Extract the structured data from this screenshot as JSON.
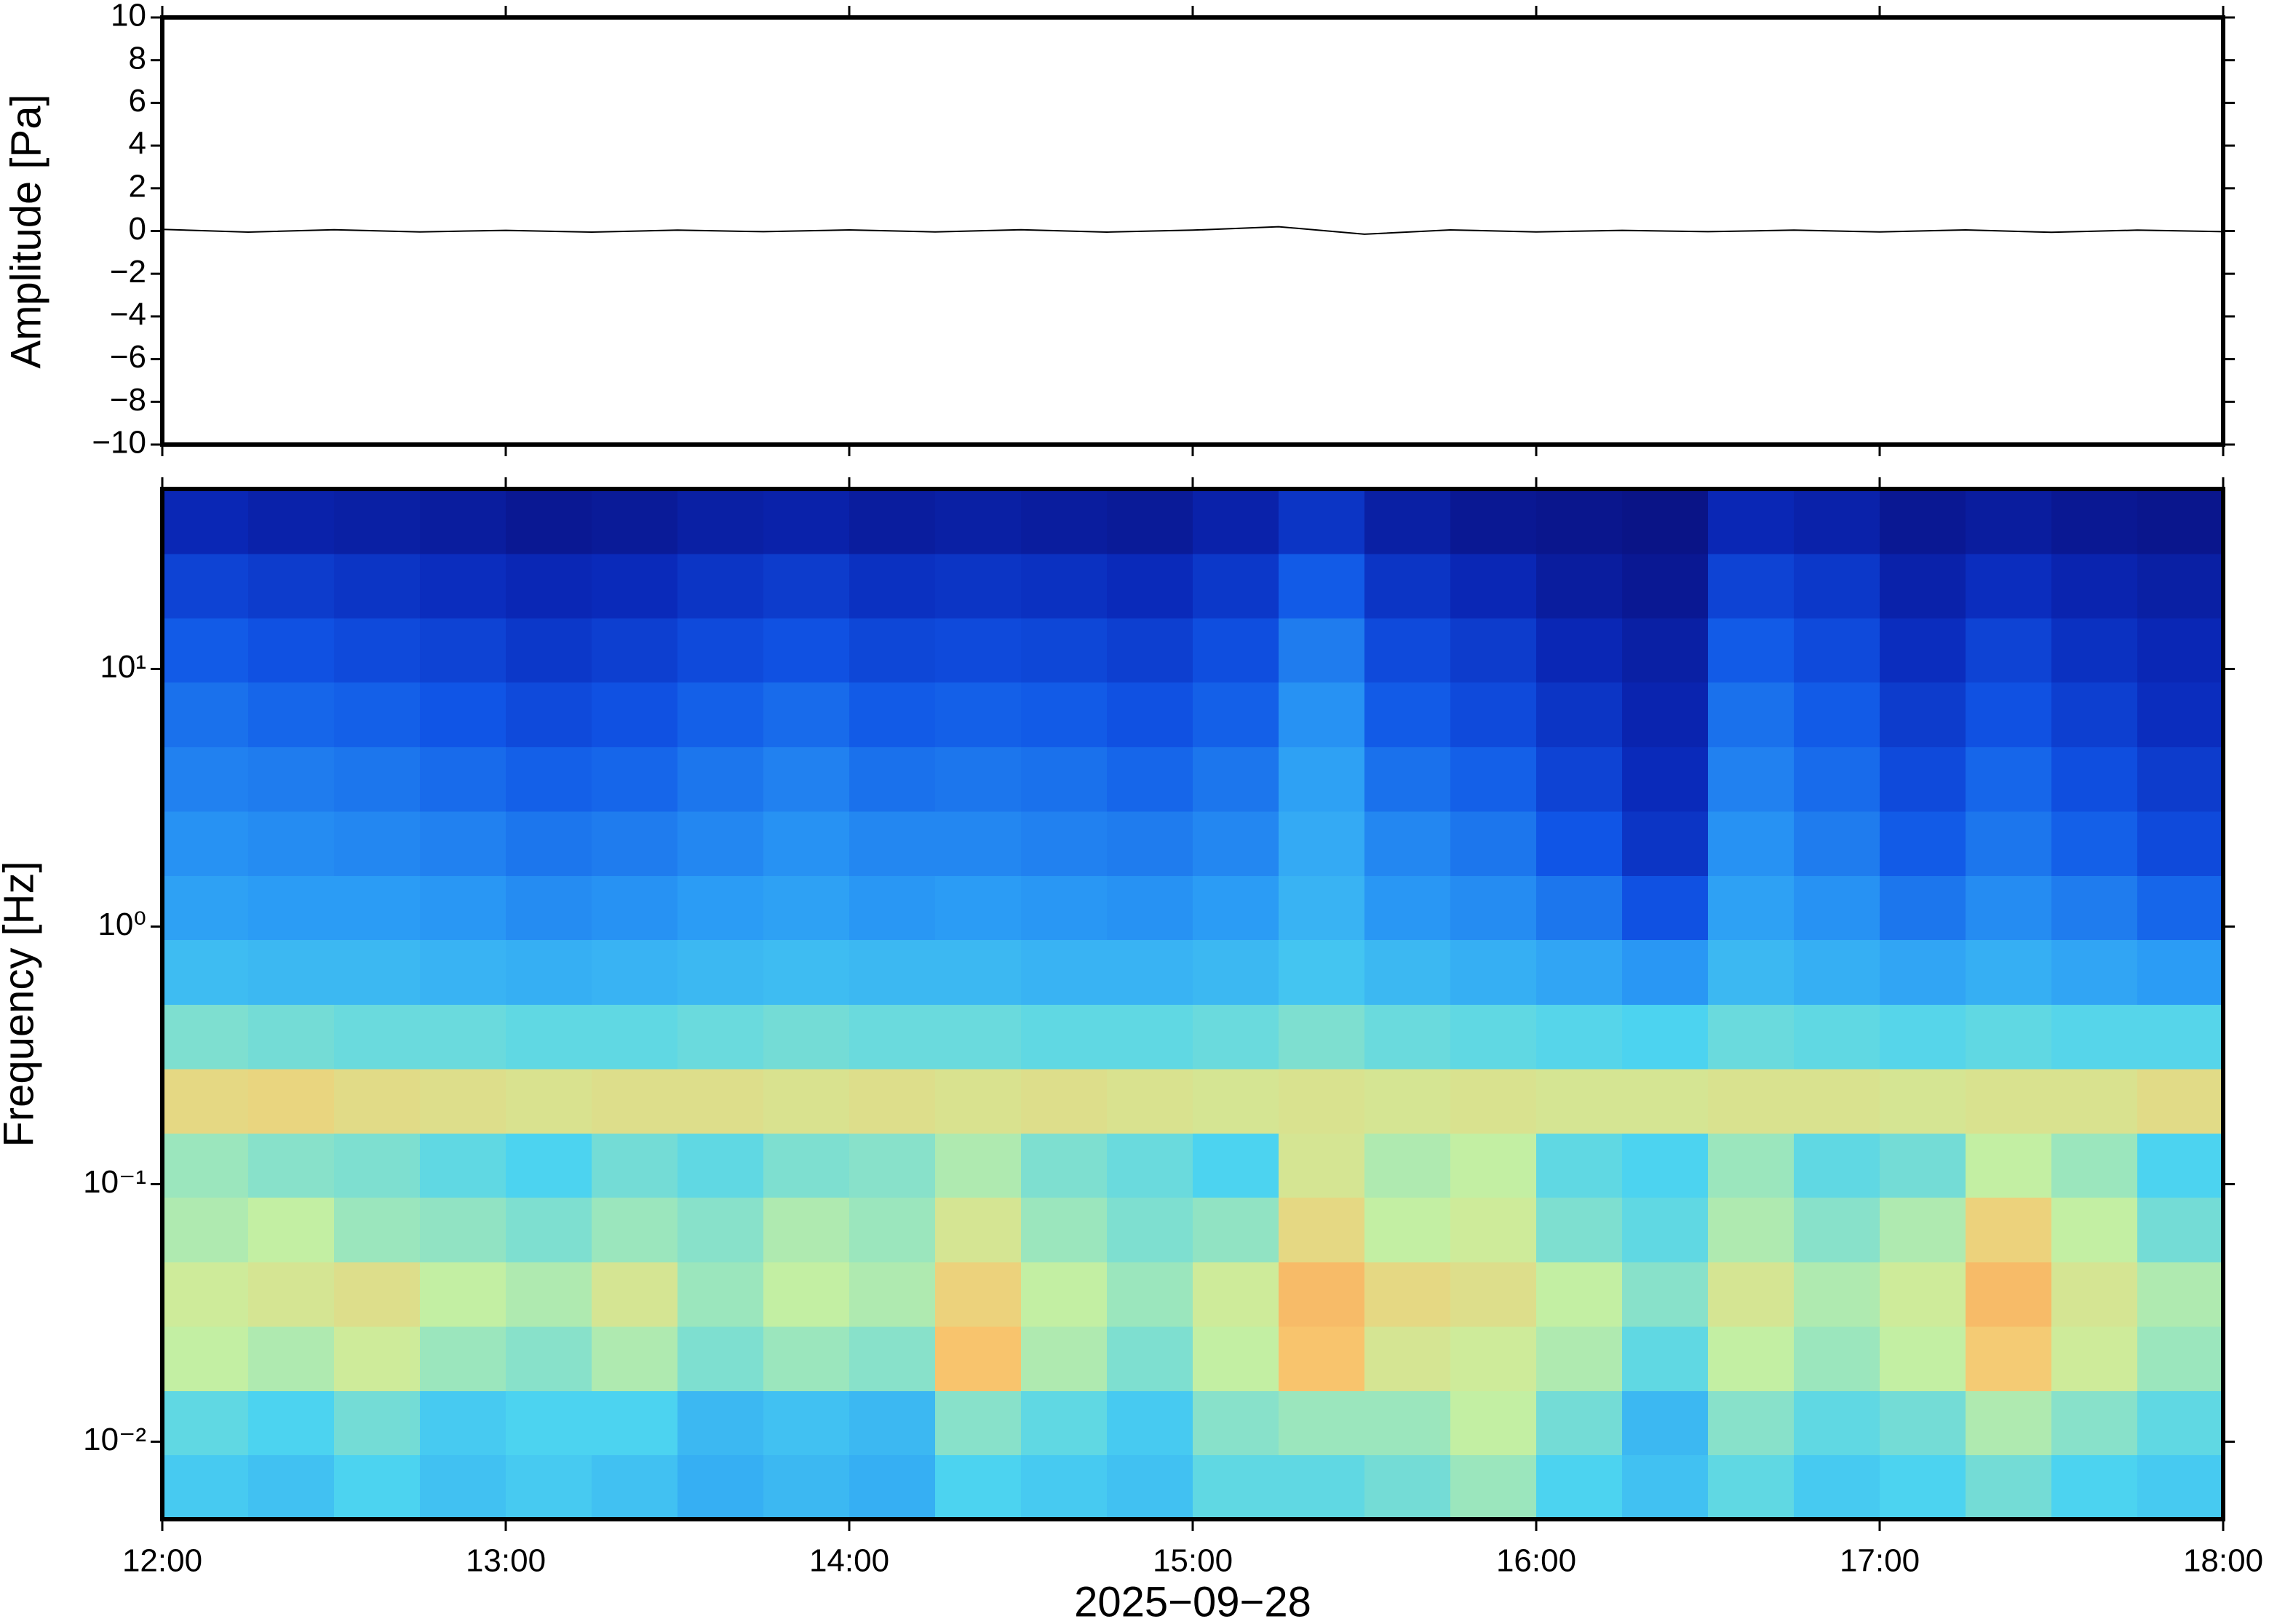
{
  "chart_data": [
    {
      "type": "line",
      "y_label": "Amplitude [Pa]",
      "color": "#000000",
      "xlim": [
        "12:00",
        "18:00"
      ],
      "x": [
        "12:00",
        "12:15",
        "12:30",
        "12:45",
        "13:00",
        "13:15",
        "13:30",
        "13:45",
        "14:00",
        "14:15",
        "14:30",
        "14:45",
        "15:00",
        "15:15",
        "15:30",
        "15:45",
        "16:00",
        "16:15",
        "16:30",
        "16:45",
        "17:00",
        "17:15",
        "17:30",
        "17:45",
        "18:00"
      ],
      "values": [
        0.08,
        -0.05,
        0.06,
        -0.04,
        0.03,
        -0.05,
        0.04,
        -0.03,
        0.05,
        -0.04,
        0.06,
        -0.05,
        0.04,
        0.2,
        -0.15,
        0.05,
        -0.04,
        0.03,
        -0.03,
        0.04,
        -0.04,
        0.05,
        -0.06,
        0.04,
        -0.03
      ],
      "ylim": [
        -10,
        10
      ],
      "yticks": [
        {
          "value": -10,
          "label": "−10"
        },
        {
          "value": -8,
          "label": "−8"
        },
        {
          "value": -6,
          "label": "−6"
        },
        {
          "value": -4,
          "label": "−4"
        },
        {
          "value": -2,
          "label": "−2"
        },
        0,
        2,
        4,
        6,
        8,
        10
      ]
    },
    {
      "type": "spectrogram",
      "y_label": "Frequency [Hz]",
      "x_label": "2025−09−28",
      "y_log": true,
      "xlim": [
        "12:00",
        "18:00"
      ],
      "xticks": [
        "12:00",
        "13:00",
        "14:00",
        "15:00",
        "16:00",
        "17:00",
        "18:00"
      ],
      "ylim": [
        0.005,
        50
      ],
      "yticks": [
        {
          "value": 0.01,
          "label": "10⁻²"
        },
        {
          "value": 0.1,
          "label": "10⁻¹"
        },
        {
          "value": 1,
          "label": "10⁰"
        },
        {
          "value": 10,
          "label": "10¹"
        }
      ],
      "x_bins": [
        "12:00",
        "12:15",
        "12:30",
        "12:45",
        "13:00",
        "13:15",
        "13:30",
        "13:45",
        "14:00",
        "14:15",
        "14:30",
        "14:45",
        "15:00",
        "15:15",
        "15:30",
        "15:45",
        "16:00",
        "16:15",
        "16:30",
        "16:45",
        "17:00",
        "17:15",
        "17:30",
        "17:45",
        "18:00"
      ],
      "y_bins": [
        0.005,
        0.0089,
        0.0158,
        0.0281,
        0.05,
        0.089,
        0.158,
        0.281,
        0.5,
        0.89,
        1.58,
        2.81,
        5,
        8.9,
        15.8,
        28.1,
        50
      ],
      "zlim": [
        0,
        100
      ],
      "colormap": [
        "#0a0a70",
        "#0a28b8",
        "#1055e6",
        "#2a9af5",
        "#4cd3f0",
        "#c8f0a0",
        "#f8c870",
        "#f59050",
        "#e05030"
      ],
      "values": [
        [
          48,
          46,
          50,
          46,
          48,
          46,
          42,
          44,
          42,
          50,
          48,
          46,
          52,
          52,
          54,
          58,
          50,
          46,
          52,
          48,
          50,
          54,
          50,
          48
        ],
        [
          52,
          50,
          54,
          48,
          50,
          50,
          44,
          46,
          44,
          56,
          52,
          48,
          56,
          58,
          58,
          62,
          54,
          44,
          56,
          52,
          54,
          60,
          56,
          52
        ],
        [
          62,
          60,
          64,
          58,
          56,
          60,
          55,
          58,
          56,
          76,
          60,
          55,
          62,
          76,
          66,
          64,
          60,
          52,
          62,
          58,
          62,
          74,
          64,
          58
        ],
        [
          64,
          66,
          68,
          62,
          60,
          66,
          58,
          62,
          60,
          72,
          62,
          58,
          64,
          78,
          70,
          68,
          62,
          56,
          66,
          60,
          64,
          78,
          66,
          60
        ],
        [
          60,
          62,
          58,
          57,
          55,
          58,
          56,
          60,
          58,
          66,
          58,
          55,
          57,
          70,
          62,
          64,
          55,
          52,
          60,
          56,
          60,
          72,
          62,
          54
        ],
        [
          58,
          56,
          55,
          52,
          50,
          54,
          52,
          55,
          56,
          60,
          55,
          53,
          50,
          66,
          60,
          62,
          52,
          50,
          58,
          52,
          54,
          62,
          58,
          50
        ],
        [
          70,
          71,
          69,
          68,
          67,
          68,
          68,
          67,
          68,
          67,
          68,
          67,
          66,
          67,
          66,
          67,
          66,
          66,
          67,
          67,
          66,
          67,
          67,
          69
        ],
        [
          55,
          54,
          53,
          53,
          52,
          52,
          53,
          54,
          53,
          53,
          52,
          52,
          53,
          55,
          53,
          52,
          51,
          50,
          53,
          52,
          51,
          52,
          51,
          51
        ],
        [
          45,
          44,
          44,
          43,
          42,
          43,
          44,
          45,
          44,
          44,
          43,
          43,
          44,
          47,
          44,
          42,
          40,
          37,
          44,
          42,
          40,
          42,
          40,
          38
        ],
        [
          39,
          38,
          38,
          37,
          35,
          36,
          38,
          39,
          37,
          38,
          37,
          36,
          38,
          43,
          37,
          35,
          31,
          24,
          39,
          36,
          31,
          35,
          32,
          28
        ],
        [
          36,
          35,
          34,
          33,
          31,
          32,
          34,
          36,
          34,
          34,
          33,
          32,
          34,
          41,
          34,
          31,
          25,
          16,
          36,
          32,
          26,
          31,
          27,
          22
        ],
        [
          33,
          32,
          31,
          29,
          27,
          28,
          31,
          33,
          30,
          31,
          30,
          28,
          31,
          39,
          30,
          27,
          20,
          13,
          33,
          29,
          22,
          28,
          23,
          18
        ],
        [
          30,
          28,
          27,
          25,
          22,
          24,
          27,
          29,
          26,
          27,
          26,
          24,
          27,
          36,
          26,
          22,
          16,
          11,
          30,
          26,
          18,
          24,
          19,
          14
        ],
        [
          26,
          24,
          22,
          20,
          17,
          19,
          22,
          24,
          21,
          22,
          21,
          19,
          23,
          32,
          22,
          18,
          12,
          9,
          26,
          22,
          14,
          20,
          15,
          12
        ],
        [
          20,
          18,
          16,
          14,
          12,
          13,
          16,
          18,
          15,
          16,
          15,
          13,
          17,
          26,
          16,
          12,
          8,
          6,
          20,
          17,
          10,
          14,
          11,
          9
        ],
        [
          12,
          10,
          9,
          8,
          6,
          7,
          9,
          10,
          8,
          9,
          8,
          7,
          10,
          16,
          9,
          6,
          5,
          4,
          12,
          10,
          6,
          8,
          6,
          5
        ]
      ]
    }
  ]
}
